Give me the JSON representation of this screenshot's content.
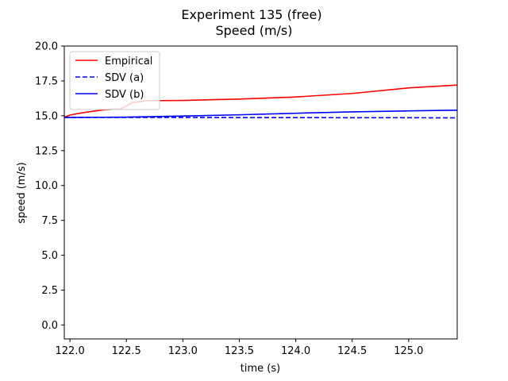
{
  "chart_data": {
    "type": "line",
    "title": "Experiment 135 (free)",
    "subtitle": "Speed (m/s)",
    "xlabel": "time (s)",
    "ylabel": "speed (m/s)",
    "xlim": [
      121.95,
      125.43
    ],
    "ylim": [
      -1.0,
      20.0
    ],
    "xticks": [
      "122.0",
      "122.5",
      "123.0",
      "123.5",
      "124.0",
      "124.5",
      "125.0"
    ],
    "yticks": [
      "0.0",
      "2.5",
      "5.0",
      "7.5",
      "10.0",
      "12.5",
      "15.0",
      "17.5",
      "20.0"
    ],
    "grid": false,
    "legend_placement": "upper-left",
    "series": [
      {
        "name": "Empirical",
        "color": "#ff0000",
        "style": "solid",
        "x": [
          121.95,
          122.0,
          122.1,
          122.2,
          122.3,
          122.45,
          122.5,
          122.55,
          122.65,
          122.7,
          123.0,
          123.5,
          124.0,
          124.5,
          125.0,
          125.43
        ],
        "y": [
          14.9,
          15.05,
          15.2,
          15.32,
          15.42,
          15.5,
          15.7,
          15.95,
          16.05,
          16.08,
          16.1,
          16.2,
          16.35,
          16.6,
          17.0,
          17.2
        ]
      },
      {
        "name": "SDV (a)",
        "color": "#0000ff",
        "style": "dashed",
        "x": [
          121.95,
          122.5,
          123.0,
          123.5,
          124.0,
          124.5,
          125.0,
          125.43
        ],
        "y": [
          14.88,
          14.88,
          14.88,
          14.87,
          14.87,
          14.86,
          14.86,
          14.85
        ]
      },
      {
        "name": "SDV (b)",
        "color": "#0000ff",
        "style": "solid",
        "x": [
          121.95,
          122.5,
          123.0,
          123.5,
          124.0,
          124.5,
          125.0,
          125.43
        ],
        "y": [
          14.88,
          14.9,
          14.98,
          15.07,
          15.18,
          15.28,
          15.35,
          15.4
        ]
      }
    ]
  }
}
